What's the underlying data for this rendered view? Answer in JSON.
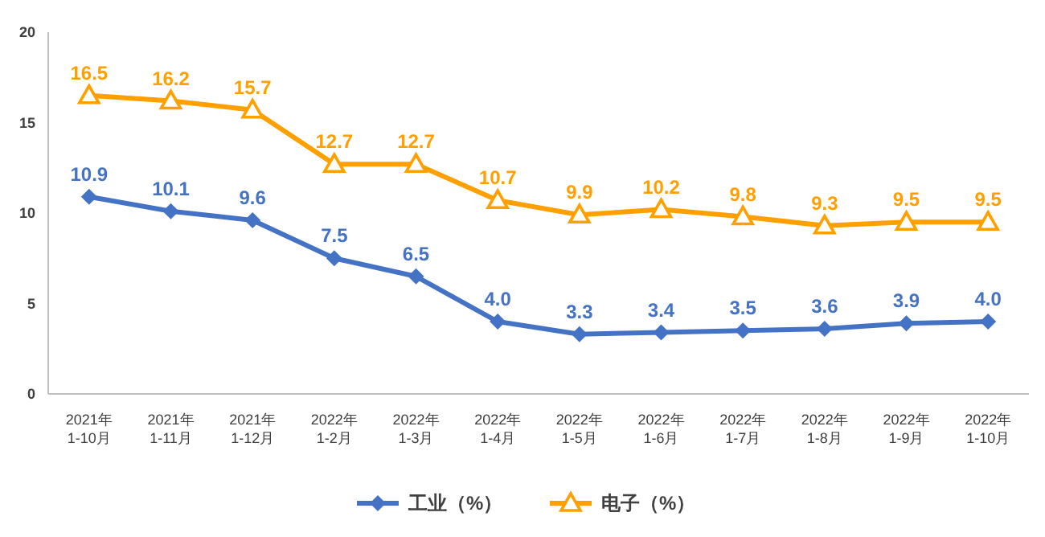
{
  "chart_data": {
    "type": "line",
    "categories": [
      "2021年\n1-10月",
      "2021年\n1-11月",
      "2021年\n1-12月",
      "2022年\n1-2月",
      "2022年\n1-3月",
      "2022年\n1-4月",
      "2022年\n1-5月",
      "2022年\n1-6月",
      "2022年\n1-7月",
      "2022年\n1-8月",
      "2022年\n1-9月",
      "2022年\n1-10月"
    ],
    "series": [
      {
        "name": "工业（%）",
        "color": "#4472c4",
        "marker": "diamond",
        "values": [
          10.9,
          10.1,
          9.6,
          7.5,
          6.5,
          4.0,
          3.3,
          3.4,
          3.5,
          3.6,
          3.9,
          4.0
        ],
        "value_labels": [
          "10.9",
          "10.1",
          "9.6",
          "7.5",
          "6.5",
          "4.0",
          "3.3",
          "3.4",
          "3.5",
          "3.6",
          "3.9",
          "4.0"
        ]
      },
      {
        "name": "电子（%）",
        "color": "#ffa000",
        "marker": "triangle",
        "values": [
          16.5,
          16.2,
          15.7,
          12.7,
          12.7,
          10.7,
          9.9,
          10.2,
          9.8,
          9.3,
          9.5,
          9.5
        ],
        "value_labels": [
          "16.5",
          "16.2",
          "15.7",
          "12.7",
          "12.7",
          "10.7",
          "9.9",
          "10.2",
          "9.8",
          "9.3",
          "9.5",
          "9.5"
        ]
      }
    ],
    "ylim": [
      0,
      20
    ],
    "yticks": [
      0,
      5,
      10,
      15,
      20
    ],
    "grid": false,
    "legend": "bottom",
    "line_style": "solid"
  }
}
